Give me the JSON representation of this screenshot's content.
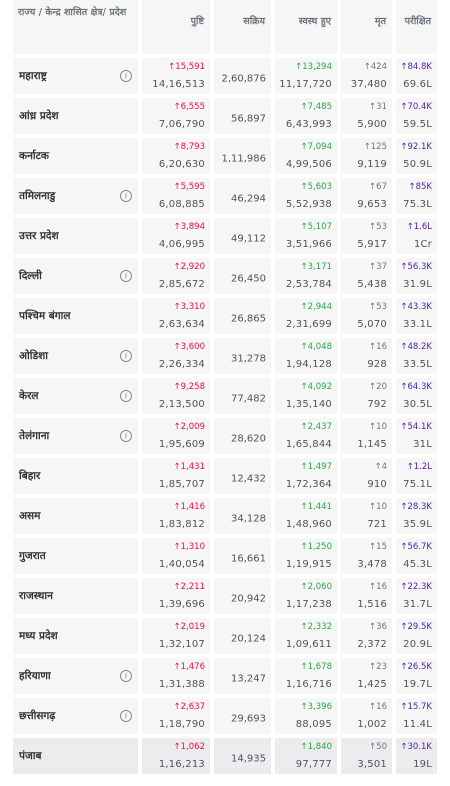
{
  "header": {
    "state": "राज्य / केन्द्र शासित क्षेत्र/ प्रदेश",
    "confirmed": "पुष्टि",
    "active": "सक्रिय",
    "recovered": "स्वस्थ हुए",
    "deceased": "मृत",
    "tested": "परीक्षित"
  },
  "colors": {
    "confirmed": "#ff073a",
    "recovered": "#28a745",
    "deceased": "#6c757d",
    "tested": "#4b1eaa"
  },
  "rows": [
    {
      "name": "महाराष्ट्र",
      "info": true,
      "conf_delta": "↑15,591",
      "conf": "14,16,513",
      "active": "2,60,876",
      "rec_delta": "↑13,294",
      "rec": "11,17,720",
      "dec_delta": "↑424",
      "dec": "37,480",
      "tst_delta": "↑84.8K",
      "tst": "69.6L"
    },
    {
      "name": "आंध्र प्रदेश",
      "info": false,
      "conf_delta": "↑6,555",
      "conf": "7,06,790",
      "active": "56,897",
      "rec_delta": "↑7,485",
      "rec": "6,43,993",
      "dec_delta": "↑31",
      "dec": "5,900",
      "tst_delta": "↑70.4K",
      "tst": "59.5L"
    },
    {
      "name": "कर्नाटक",
      "info": false,
      "conf_delta": "↑8,793",
      "conf": "6,20,630",
      "active": "1,11,986",
      "rec_delta": "↑7,094",
      "rec": "4,99,506",
      "dec_delta": "↑125",
      "dec": "9,119",
      "tst_delta": "↑92.1K",
      "tst": "50.9L"
    },
    {
      "name": "तमिलनाडु",
      "info": true,
      "conf_delta": "↑5,595",
      "conf": "6,08,885",
      "active": "46,294",
      "rec_delta": "↑5,603",
      "rec": "5,52,938",
      "dec_delta": "↑67",
      "dec": "9,653",
      "tst_delta": "↑85K",
      "tst": "75.3L"
    },
    {
      "name": "उत्तर प्रदेश",
      "info": false,
      "conf_delta": "↑3,894",
      "conf": "4,06,995",
      "active": "49,112",
      "rec_delta": "↑5,107",
      "rec": "3,51,966",
      "dec_delta": "↑53",
      "dec": "5,917",
      "tst_delta": "↑1.6L",
      "tst": "1Cr"
    },
    {
      "name": "दिल्ली",
      "info": true,
      "conf_delta": "↑2,920",
      "conf": "2,85,672",
      "active": "26,450",
      "rec_delta": "↑3,171",
      "rec": "2,53,784",
      "dec_delta": "↑37",
      "dec": "5,438",
      "tst_delta": "↑56.3K",
      "tst": "31.9L"
    },
    {
      "name": "पश्चिम बंगाल",
      "info": false,
      "conf_delta": "↑3,310",
      "conf": "2,63,634",
      "active": "26,865",
      "rec_delta": "↑2,944",
      "rec": "2,31,699",
      "dec_delta": "↑53",
      "dec": "5,070",
      "tst_delta": "↑43.3K",
      "tst": "33.1L"
    },
    {
      "name": "ओडिशा",
      "info": true,
      "conf_delta": "↑3,600",
      "conf": "2,26,334",
      "active": "31,278",
      "rec_delta": "↑4,048",
      "rec": "1,94,128",
      "dec_delta": "↑16",
      "dec": "928",
      "tst_delta": "↑48.2K",
      "tst": "33.5L"
    },
    {
      "name": "केरल",
      "info": true,
      "conf_delta": "↑9,258",
      "conf": "2,13,500",
      "active": "77,482",
      "rec_delta": "↑4,092",
      "rec": "1,35,140",
      "dec_delta": "↑20",
      "dec": "792",
      "tst_delta": "↑64.3K",
      "tst": "30.5L"
    },
    {
      "name": "तेलंगाना",
      "info": true,
      "conf_delta": "↑2,009",
      "conf": "1,95,609",
      "active": "28,620",
      "rec_delta": "↑2,437",
      "rec": "1,65,844",
      "dec_delta": "↑10",
      "dec": "1,145",
      "tst_delta": "↑54.1K",
      "tst": "31L"
    },
    {
      "name": "बिहार",
      "info": false,
      "conf_delta": "↑1,431",
      "conf": "1,85,707",
      "active": "12,432",
      "rec_delta": "↑1,497",
      "rec": "1,72,364",
      "dec_delta": "↑4",
      "dec": "910",
      "tst_delta": "↑1.2L",
      "tst": "75.1L"
    },
    {
      "name": "असम",
      "info": false,
      "conf_delta": "↑1,416",
      "conf": "1,83,812",
      "active": "34,128",
      "rec_delta": "↑1,441",
      "rec": "1,48,960",
      "dec_delta": "↑10",
      "dec": "721",
      "tst_delta": "↑28.3K",
      "tst": "35.9L"
    },
    {
      "name": "गुजरात",
      "info": false,
      "conf_delta": "↑1,310",
      "conf": "1,40,054",
      "active": "16,661",
      "rec_delta": "↑1,250",
      "rec": "1,19,915",
      "dec_delta": "↑15",
      "dec": "3,478",
      "tst_delta": "↑56.7K",
      "tst": "45.3L"
    },
    {
      "name": "राजस्थान",
      "info": false,
      "conf_delta": "↑2,211",
      "conf": "1,39,696",
      "active": "20,942",
      "rec_delta": "↑2,060",
      "rec": "1,17,238",
      "dec_delta": "↑16",
      "dec": "1,516",
      "tst_delta": "↑22.3K",
      "tst": "31.7L"
    },
    {
      "name": "मध्य प्रदेश",
      "info": false,
      "conf_delta": "↑2,019",
      "conf": "1,32,107",
      "active": "20,124",
      "rec_delta": "↑2,332",
      "rec": "1,09,611",
      "dec_delta": "↑36",
      "dec": "2,372",
      "tst_delta": "↑29.5K",
      "tst": "20.9L"
    },
    {
      "name": "हरियाणा",
      "info": true,
      "conf_delta": "↑1,476",
      "conf": "1,31,388",
      "active": "13,247",
      "rec_delta": "↑1,678",
      "rec": "1,16,716",
      "dec_delta": "↑23",
      "dec": "1,425",
      "tst_delta": "↑26.5K",
      "tst": "19.7L"
    },
    {
      "name": "छत्तीसगढ़",
      "info": true,
      "conf_delta": "↑2,637",
      "conf": "1,18,790",
      "active": "29,693",
      "rec_delta": "↑3,396",
      "rec": "88,095",
      "dec_delta": "↑16",
      "dec": "1,002",
      "tst_delta": "↑15.7K",
      "tst": "11.4L"
    },
    {
      "name": "पंजाब",
      "info": false,
      "conf_delta": "↑1,062",
      "conf": "1,16,213",
      "active": "14,935",
      "rec_delta": "↑1,840",
      "rec": "97,777",
      "dec_delta": "↑50",
      "dec": "3,501",
      "tst_delta": "↑30.1K",
      "tst": "19L"
    }
  ]
}
